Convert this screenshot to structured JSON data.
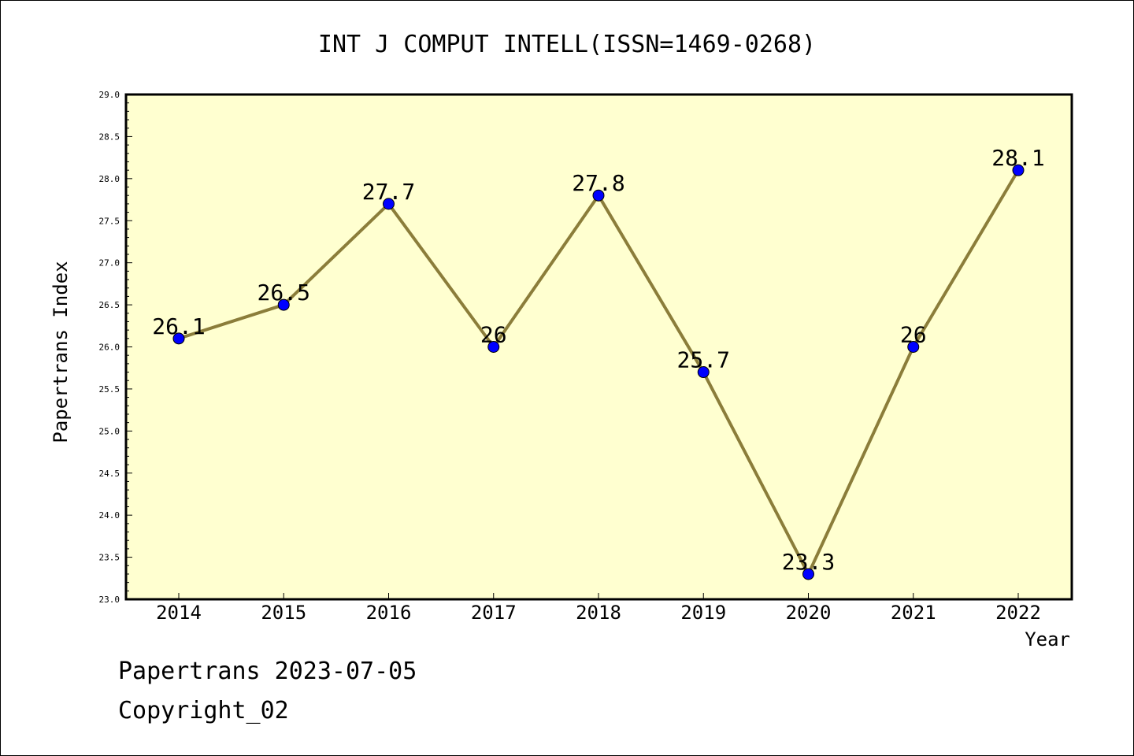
{
  "chart_data": {
    "type": "line",
    "title": "INT J COMPUT INTELL(ISSN=1469-0268)",
    "xlabel": "Year",
    "ylabel": "Papertrans Index",
    "categories": [
      "2014",
      "2015",
      "2016",
      "2017",
      "2018",
      "2019",
      "2020",
      "2021",
      "2022"
    ],
    "series": [
      {
        "values": [
          26.1,
          26.5,
          27.7,
          26,
          27.8,
          25.7,
          23.3,
          26,
          28.1
        ]
      }
    ],
    "data_labels": [
      "26.1",
      "26.5",
      "27.7",
      "26",
      "27.8",
      "25.7",
      "23.3",
      "26",
      "28.1"
    ],
    "ylim": [
      23.0,
      29.0
    ],
    "yticks": [
      "23.0",
      "23.5",
      "24.0",
      "24.5",
      "25.0",
      "25.5",
      "26.0",
      "26.5",
      "27.0",
      "27.5",
      "28.0",
      "28.5",
      "29.0"
    ],
    "grid": false,
    "colors": {
      "plot_bg": "#ffffd0",
      "line": "#8b7d3a",
      "marker": "#0000ff"
    }
  },
  "footer": {
    "line1": "Papertrans 2023-07-05",
    "line2": "Copyright_02"
  }
}
